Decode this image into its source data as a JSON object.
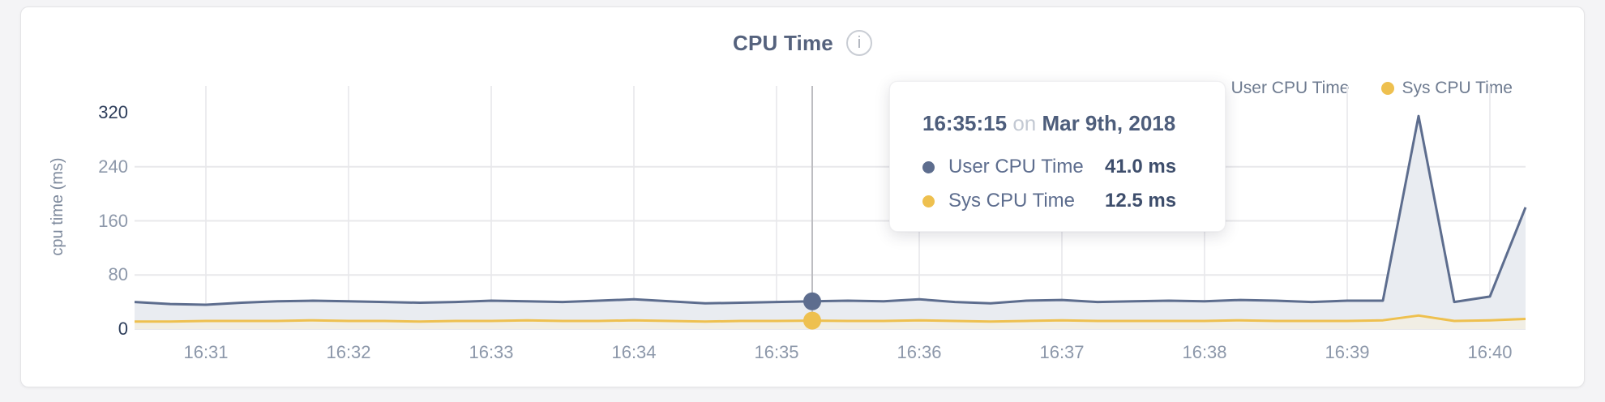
{
  "page": {
    "background_color": "#f4f4f6",
    "card_color": "#ffffff"
  },
  "header": {
    "info_icon_glyph": "i"
  },
  "chart_data": {
    "type": "line",
    "title": "CPU Time",
    "ylabel": "cpu time (ms)",
    "xlabel": "",
    "ylim": [
      0,
      320
    ],
    "yticks": [
      0,
      80,
      160,
      240,
      320
    ],
    "gridline_yticks": [
      0,
      80,
      160,
      240
    ],
    "xticks": [
      "16:31",
      "16:32",
      "16:33",
      "16:34",
      "16:35",
      "16:36",
      "16:37",
      "16:38",
      "16:39",
      "16:40"
    ],
    "grid": true,
    "legend_position": "top-right",
    "x": [
      "16:30:30",
      "16:30:45",
      "16:31:00",
      "16:31:15",
      "16:31:30",
      "16:31:45",
      "16:32:00",
      "16:32:15",
      "16:32:30",
      "16:32:45",
      "16:33:00",
      "16:33:15",
      "16:33:30",
      "16:33:45",
      "16:34:00",
      "16:34:15",
      "16:34:30",
      "16:34:45",
      "16:35:00",
      "16:35:15",
      "16:35:30",
      "16:35:45",
      "16:36:00",
      "16:36:15",
      "16:36:30",
      "16:36:45",
      "16:37:00",
      "16:37:15",
      "16:37:30",
      "16:37:45",
      "16:38:00",
      "16:38:15",
      "16:38:30",
      "16:38:45",
      "16:39:00",
      "16:39:15",
      "16:39:30",
      "16:39:45",
      "16:40:00",
      "16:40:15"
    ],
    "series": [
      {
        "name": "User CPU Time",
        "color": "#5d6d8e",
        "fill": "#e9ecf1",
        "values": [
          40,
          37,
          36,
          39,
          41,
          42,
          41,
          40,
          39,
          40,
          42,
          41,
          40,
          42,
          44,
          41,
          38,
          39,
          40,
          41,
          42,
          41,
          44,
          40,
          38,
          42,
          43,
          40,
          41,
          42,
          41,
          43,
          42,
          40,
          42,
          42,
          315,
          40,
          48,
          180
        ]
      },
      {
        "name": "Sys CPU Time",
        "color": "#eec04f",
        "fill": "#f1eee4",
        "values": [
          11,
          11,
          12,
          12,
          12,
          13,
          12,
          12,
          11,
          12,
          12,
          13,
          12,
          12,
          13,
          12,
          11,
          12,
          12,
          12.5,
          12,
          12,
          13,
          12,
          11,
          12,
          13,
          12,
          12,
          12,
          12,
          13,
          12,
          12,
          12,
          13,
          20,
          12,
          13,
          15
        ]
      }
    ],
    "colors": {
      "hgrid": "#e8e8eb",
      "vgrid": "#ececef",
      "crosshair": "#bdbdc1"
    }
  },
  "tooltip": {
    "point_time": "16:35:15",
    "time": "16:35:15",
    "on_word": "on",
    "date": "Mar 9th, 2018",
    "rows": [
      {
        "label": "User CPU Time",
        "value": "41.0 ms"
      },
      {
        "label": "Sys CPU Time",
        "value": "12.5 ms"
      }
    ]
  }
}
